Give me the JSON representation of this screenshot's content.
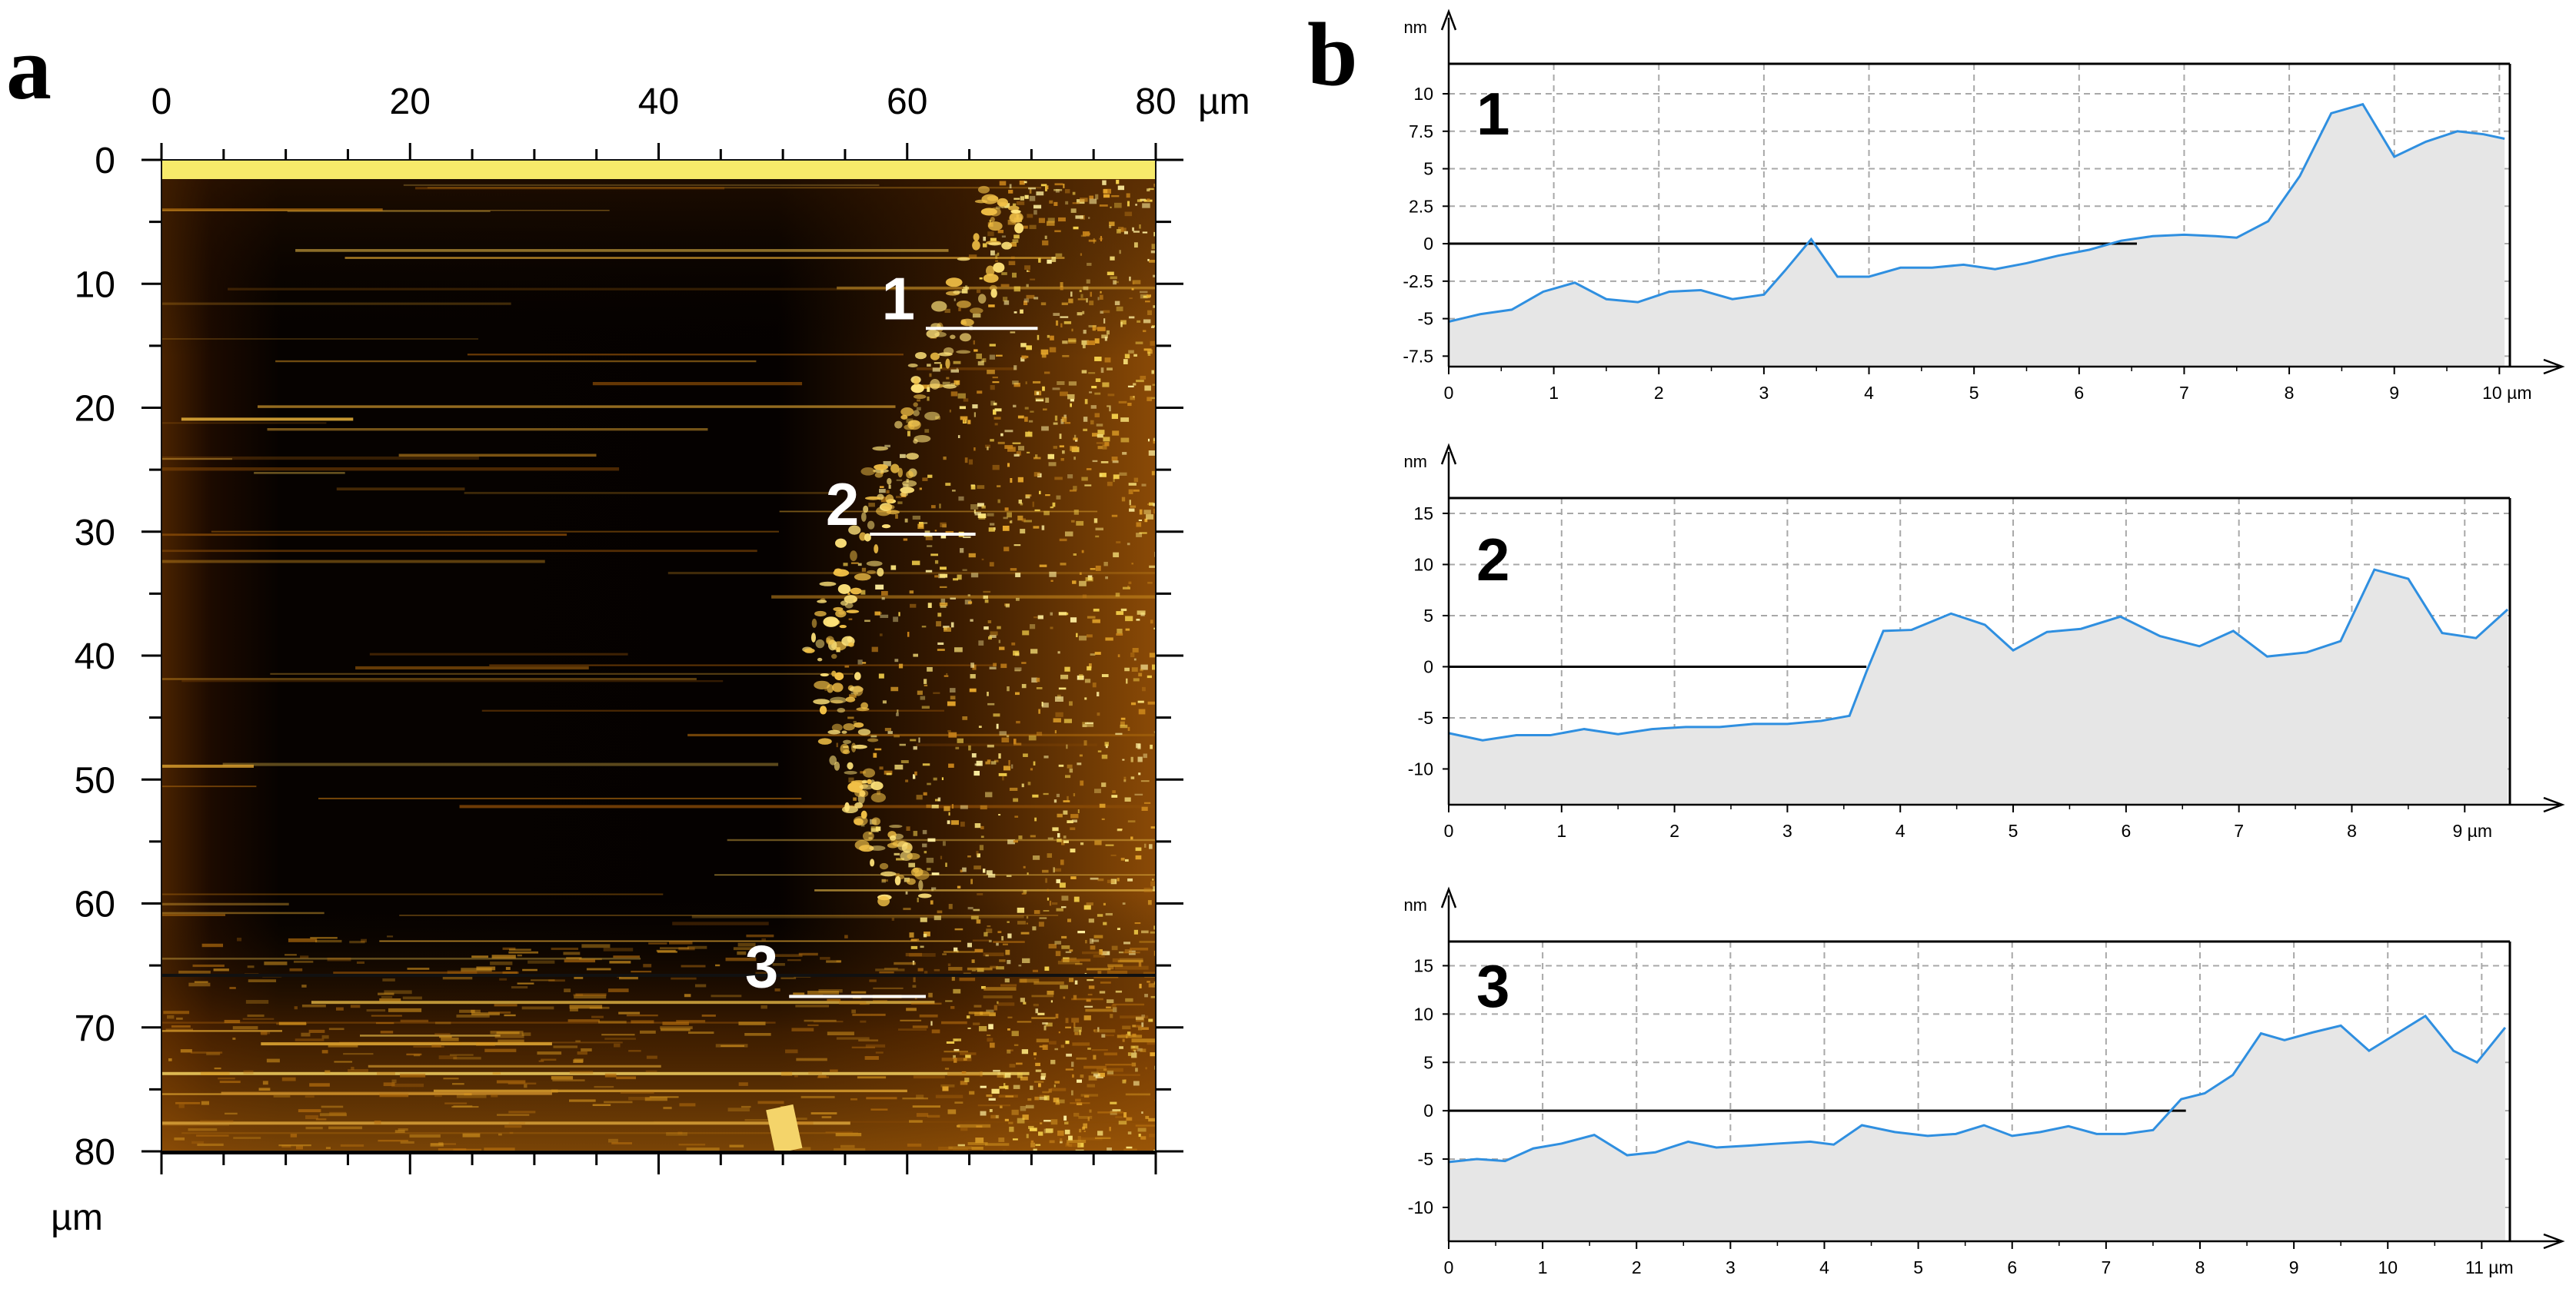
{
  "panel_a": {
    "letter": "a",
    "x_unit": "µm",
    "y_unit": "µm",
    "x_ticks": [
      "0",
      "20",
      "40",
      "60",
      "80"
    ],
    "x_tick_values": [
      0,
      20,
      40,
      60,
      80
    ],
    "y_ticks": [
      "0",
      "10",
      "20",
      "30",
      "40",
      "50",
      "60",
      "70",
      "80"
    ],
    "y_tick_values": [
      0,
      10,
      20,
      30,
      40,
      50,
      60,
      70,
      80
    ],
    "range": [
      0,
      80
    ],
    "markers": [
      {
        "label": "1",
        "x0": 61.5,
        "x1": 70.5,
        "y": 13.6
      },
      {
        "label": "2",
        "x0": 57.0,
        "x1": 65.5,
        "y": 30.2
      },
      {
        "label": "3",
        "x0": 50.5,
        "x1": 61.5,
        "y": 67.5
      }
    ],
    "scan_line_y": 65.8,
    "colors": {
      "dark": "#050100",
      "mid": "#7a3d00",
      "bright": "#f6d24c",
      "top_band": "#f7ea6a"
    }
  },
  "panel_b": {
    "letter": "b",
    "y_unit": "nm",
    "x_unit": "µm",
    "line_color": "#2f8fe0",
    "fill_color": "#e6e6e6",
    "grid_color": "#a8a8a8"
  },
  "chart_data": [
    {
      "type": "area",
      "label": "1",
      "ylabel": "nm",
      "xlabel": "µm",
      "xlim": [
        0,
        10.1
      ],
      "ylim": [
        -8.2,
        12.0
      ],
      "x_ticks": [
        0,
        1,
        2,
        3,
        4,
        5,
        6,
        7,
        8,
        9,
        10
      ],
      "x_tick_labels": [
        "0",
        "1",
        "2",
        "3",
        "4",
        "5",
        "6",
        "7",
        "8",
        "9",
        "10 µm"
      ],
      "y_ticks": [
        10,
        7.5,
        5,
        2.5,
        0,
        -2.5,
        -5,
        -7.5
      ],
      "y_tick_labels": [
        "10",
        "7.5",
        "5",
        "2.5",
        "0",
        "-2.5",
        "-5",
        "-7.5"
      ],
      "x": [
        0,
        0.3,
        0.6,
        0.9,
        1.2,
        1.5,
        1.8,
        2.1,
        2.4,
        2.7,
        3.0,
        3.2,
        3.45,
        3.7,
        4.0,
        4.3,
        4.6,
        4.9,
        5.2,
        5.5,
        5.8,
        6.1,
        6.4,
        6.7,
        7.0,
        7.3,
        7.5,
        7.8,
        8.1,
        8.4,
        8.7,
        9.0,
        9.3,
        9.6,
        9.85,
        10.05
      ],
      "y": [
        -5.2,
        -4.7,
        -4.4,
        -3.2,
        -2.6,
        -3.7,
        -3.9,
        -3.2,
        -3.1,
        -3.7,
        -3.4,
        -1.8,
        0.3,
        -2.2,
        -2.2,
        -1.6,
        -1.6,
        -1.4,
        -1.7,
        -1.3,
        -0.8,
        -0.4,
        0.2,
        0.5,
        0.6,
        0.5,
        0.4,
        1.5,
        4.5,
        8.7,
        9.3,
        5.8,
        6.8,
        7.5,
        7.3,
        7.0
      ]
    },
    {
      "type": "area",
      "label": "2",
      "ylabel": "nm",
      "xlabel": "µm",
      "xlim": [
        0,
        9.4
      ],
      "ylim": [
        -13.5,
        16.5
      ],
      "x_ticks": [
        0,
        1,
        2,
        3,
        4,
        5,
        6,
        7,
        8,
        9
      ],
      "x_tick_labels": [
        "0",
        "1",
        "2",
        "3",
        "4",
        "5",
        "6",
        "7",
        "8",
        "9 µm"
      ],
      "y_ticks": [
        15,
        10,
        5,
        0,
        -5,
        -10
      ],
      "y_tick_labels": [
        "15",
        "10",
        "5",
        "0",
        "-5",
        "-10"
      ],
      "x": [
        0,
        0.3,
        0.6,
        0.9,
        1.2,
        1.5,
        1.8,
        2.1,
        2.4,
        2.7,
        3.0,
        3.3,
        3.55,
        3.7,
        3.85,
        4.1,
        4.45,
        4.75,
        5.0,
        5.3,
        5.6,
        5.95,
        6.3,
        6.65,
        6.95,
        7.25,
        7.6,
        7.9,
        8.2,
        8.5,
        8.8,
        9.1,
        9.38
      ],
      "y": [
        -6.5,
        -7.2,
        -6.7,
        -6.7,
        -6.1,
        -6.6,
        -6.1,
        -5.9,
        -5.9,
        -5.6,
        -5.6,
        -5.3,
        -4.8,
        -0.5,
        3.5,
        3.6,
        5.2,
        4.1,
        1.6,
        3.4,
        3.7,
        4.9,
        3.0,
        2.0,
        3.5,
        1.0,
        1.4,
        2.5,
        9.5,
        8.6,
        3.3,
        2.8,
        5.6
      ]
    },
    {
      "type": "area",
      "label": "3",
      "ylabel": "nm",
      "xlabel": "µm",
      "xlim": [
        0,
        11.3
      ],
      "ylim": [
        -13.5,
        17.5
      ],
      "x_ticks": [
        0,
        1,
        2,
        3,
        4,
        5,
        6,
        7,
        8,
        9,
        10,
        11
      ],
      "x_tick_labels": [
        "0",
        "1",
        "2",
        "3",
        "4",
        "5",
        "6",
        "7",
        "8",
        "9",
        "10",
        "11 µm"
      ],
      "y_ticks": [
        15,
        10,
        5,
        0,
        -5,
        -10
      ],
      "y_tick_labels": [
        "15",
        "10",
        "5",
        "0",
        "-5",
        "-10"
      ],
      "x": [
        0,
        0.3,
        0.6,
        0.9,
        1.2,
        1.55,
        1.9,
        2.2,
        2.55,
        2.85,
        3.2,
        3.5,
        3.85,
        4.1,
        4.4,
        4.75,
        5.1,
        5.4,
        5.7,
        6.0,
        6.3,
        6.6,
        6.9,
        7.2,
        7.5,
        7.8,
        8.05,
        8.35,
        8.65,
        8.9,
        9.2,
        9.5,
        9.8,
        10.1,
        10.4,
        10.7,
        10.95,
        11.25
      ],
      "y": [
        -5.3,
        -5.0,
        -5.2,
        -3.9,
        -3.4,
        -2.5,
        -4.6,
        -4.3,
        -3.2,
        -3.8,
        -3.6,
        -3.4,
        -3.2,
        -3.5,
        -1.5,
        -2.2,
        -2.6,
        -2.4,
        -1.5,
        -2.6,
        -2.2,
        -1.6,
        -2.4,
        -2.4,
        -2.0,
        1.2,
        1.8,
        3.7,
        8.0,
        7.3,
        8.1,
        8.8,
        6.2,
        8.0,
        9.8,
        6.2,
        5.0,
        8.6
      ]
    }
  ]
}
